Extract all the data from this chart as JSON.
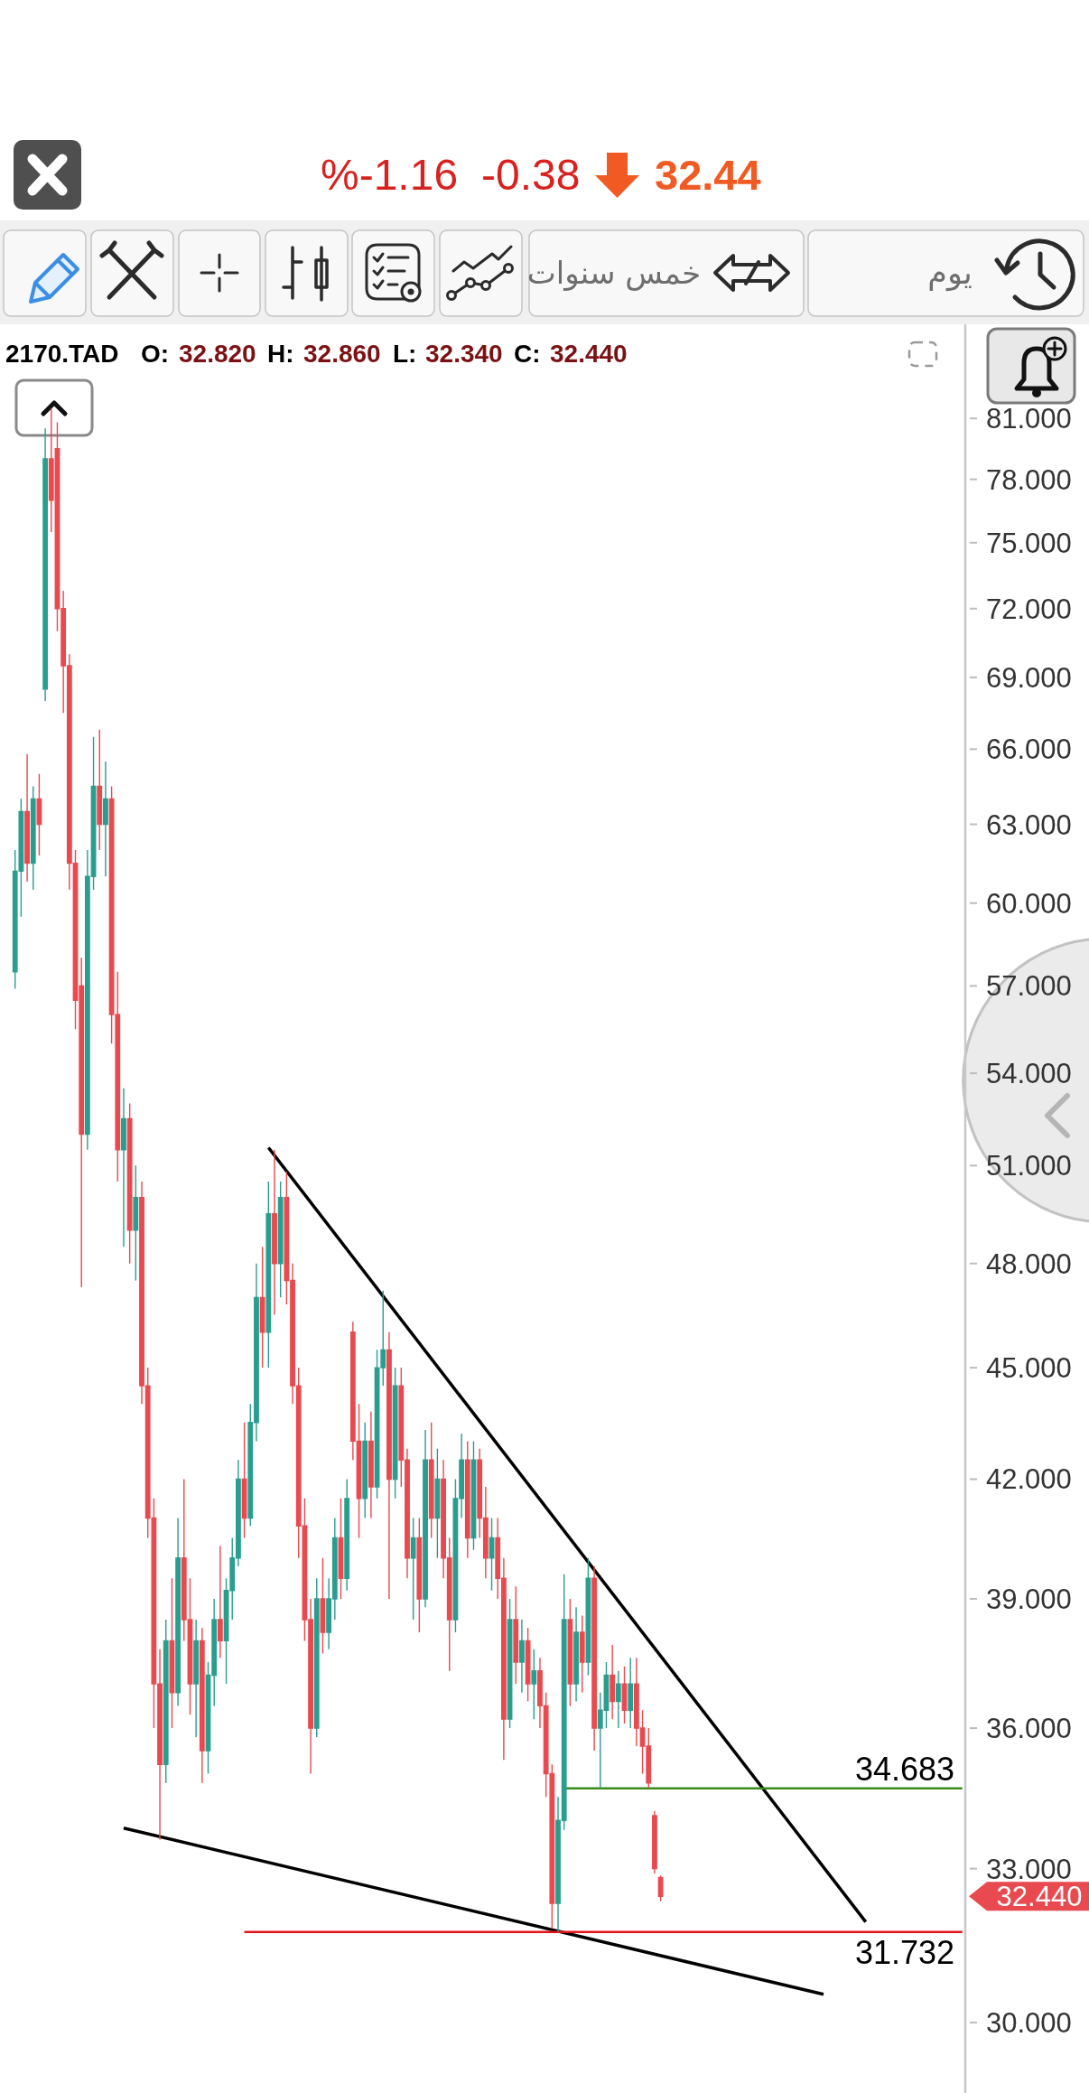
{
  "chart_data": {
    "type": "candlestick",
    "title": "2170.TAD",
    "annotations": [
      "%-1.16",
      "-0.38",
      "32.44",
      "خمس سنوات",
      "يوم",
      "O:",
      "32.820",
      "H:",
      "32.860",
      "L:",
      "32.340",
      "C:",
      "32.440",
      "32.440"
    ],
    "categories": [
      null,
      null,
      null,
      null,
      null,
      null,
      null,
      null,
      null,
      null,
      null,
      null,
      null,
      null,
      null,
      null,
      null,
      null,
      null,
      null,
      null,
      null,
      null,
      null,
      null,
      null,
      null,
      null,
      null,
      null,
      null,
      null,
      null,
      null,
      null,
      null,
      null,
      null,
      null,
      null,
      null,
      null,
      null,
      null,
      null,
      null,
      null,
      null,
      null,
      null,
      null,
      null,
      null,
      null,
      null,
      null,
      null,
      null,
      null,
      null,
      null,
      null,
      null,
      null,
      null,
      null,
      null,
      null,
      null,
      null,
      null,
      null,
      null,
      null,
      null,
      null,
      null,
      null,
      null,
      null,
      null,
      null,
      null,
      null,
      null,
      null,
      null,
      null,
      null,
      null,
      null,
      null,
      null,
      null,
      null,
      null,
      null,
      null,
      null,
      null,
      null,
      null,
      null,
      null,
      null,
      null,
      null,
      null,
      null,
      null,
      null,
      null,
      null,
      null,
      null,
      null,
      null,
      null,
      null,
      null,
      null,
      null,
      null,
      null,
      null,
      null,
      null,
      null,
      null,
      null,
      null,
      null,
      null,
      null,
      null,
      null,
      null,
      null,
      null,
      null,
      null,
      null,
      null,
      null,
      null,
      null,
      null,
      null,
      null,
      null,
      null,
      null,
      null,
      null,
      null,
      null,
      null,
      null,
      null,
      null
    ],
    "ohlc": [
      null,
      null,
      [
        57.5,
        62.0,
        56.9,
        61.2
      ],
      [
        61.2,
        64.0,
        59.5,
        63.5
      ],
      [
        63.5,
        65.8,
        60.8,
        61.5
      ],
      [
        61.5,
        64.5,
        60.5,
        64.0
      ],
      [
        64.0,
        65.0,
        61.8,
        63.0
      ],
      [
        68.5,
        80.5,
        68.0,
        79.0
      ],
      [
        79.0,
        81.5,
        75.5,
        77.0
      ],
      [
        79.5,
        80.8,
        71.0,
        72.0
      ],
      [
        72.0,
        72.8,
        67.5,
        69.5
      ],
      [
        69.5,
        70.0,
        60.5,
        61.5
      ],
      [
        61.5,
        62.0,
        55.5,
        56.5
      ],
      [
        57.0,
        58.0,
        47.3,
        52.0
      ],
      [
        52.0,
        62.0,
        51.5,
        61.0
      ],
      [
        61.0,
        66.5,
        60.5,
        64.5
      ],
      [
        64.5,
        66.8,
        62.0,
        63.0
      ],
      [
        63.0,
        65.5,
        61.0,
        64.0
      ],
      [
        64.0,
        64.5,
        55.0,
        56.0
      ],
      [
        56.0,
        57.5,
        50.5,
        51.5
      ],
      [
        51.5,
        53.5,
        48.5,
        52.5
      ],
      [
        52.5,
        53.0,
        48.0,
        49.0
      ],
      [
        49.0,
        51.0,
        47.5,
        50.0
      ],
      [
        50.0,
        50.5,
        44.0,
        44.5
      ],
      [
        44.5,
        45.0,
        40.5,
        41.0
      ],
      [
        41.0,
        41.5,
        36.0,
        37.0
      ],
      [
        37.0,
        37.8,
        33.6,
        35.2
      ],
      [
        35.2,
        38.5,
        34.8,
        38.0
      ],
      [
        38.0,
        39.5,
        36.0,
        36.8
      ],
      [
        36.8,
        41.0,
        36.5,
        40.0
      ],
      [
        40.0,
        42.0,
        38.0,
        38.5
      ],
      [
        38.5,
        39.5,
        36.3,
        37.0
      ],
      [
        37.0,
        38.5,
        35.8,
        38.0
      ],
      [
        38.0,
        38.3,
        34.8,
        35.5
      ],
      [
        35.5,
        37.5,
        35.0,
        37.2
      ],
      [
        37.2,
        39.0,
        36.5,
        38.5
      ],
      [
        38.5,
        40.3,
        37.6,
        38.0
      ],
      [
        38.0,
        39.5,
        37.0,
        39.2
      ],
      [
        39.2,
        40.5,
        38.5,
        40.0
      ],
      [
        40.0,
        42.5,
        39.8,
        42.0
      ],
      [
        42.0,
        43.5,
        40.5,
        41.0
      ],
      [
        41.0,
        44.0,
        40.8,
        43.5
      ],
      [
        43.5,
        48.0,
        43.0,
        47.0
      ],
      [
        47.0,
        48.5,
        45.0,
        46.0
      ],
      [
        46.0,
        50.5,
        45.0,
        49.5
      ],
      [
        49.5,
        51.5,
        46.5,
        48.0
      ],
      [
        48.0,
        50.5,
        47.0,
        50.0
      ],
      [
        50.0,
        50.8,
        46.8,
        47.5
      ],
      [
        47.5,
        48.0,
        44.0,
        44.5
      ],
      [
        44.5,
        45.0,
        40.0,
        40.8
      ],
      [
        40.8,
        41.5,
        38.0,
        38.5
      ],
      [
        38.5,
        39.0,
        35.0,
        36.0
      ],
      [
        36.0,
        39.5,
        35.8,
        39.0
      ],
      [
        39.0,
        40.0,
        37.7,
        38.2
      ],
      [
        38.2,
        39.5,
        37.8,
        39.0
      ],
      [
        39.0,
        41.0,
        38.5,
        40.5
      ],
      [
        40.5,
        41.5,
        39.0,
        39.5
      ],
      [
        39.5,
        42.0,
        39.2,
        41.5
      ],
      [
        46.0,
        46.3,
        42.5,
        43.0
      ],
      [
        43.0,
        44.0,
        40.5,
        41.5
      ],
      [
        41.5,
        43.5,
        41.0,
        43.0
      ],
      [
        43.0,
        43.8,
        41.0,
        41.8
      ],
      [
        41.8,
        45.5,
        41.5,
        45.0
      ],
      [
        45.0,
        47.2,
        44.5,
        45.5
      ],
      [
        45.5,
        46.0,
        39.0,
        42.0
      ],
      [
        42.0,
        45.0,
        41.5,
        44.5
      ],
      [
        44.5,
        45.0,
        41.8,
        42.5
      ],
      [
        42.5,
        42.8,
        39.5,
        40.0
      ],
      [
        40.0,
        41.0,
        38.5,
        40.5
      ],
      [
        40.5,
        41.0,
        38.2,
        39.0
      ],
      [
        39.0,
        43.3,
        38.8,
        42.5
      ],
      [
        42.5,
        43.5,
        40.5,
        41.0
      ],
      [
        41.0,
        42.8,
        40.0,
        42.0
      ],
      [
        42.0,
        42.5,
        39.5,
        40.0
      ],
      [
        40.0,
        40.5,
        37.3,
        38.5
      ],
      [
        38.5,
        42.0,
        38.2,
        41.5
      ],
      [
        41.5,
        43.2,
        41.0,
        42.5
      ],
      [
        42.5,
        43.0,
        40.0,
        40.5
      ],
      [
        40.5,
        43.0,
        40.2,
        42.5
      ],
      [
        42.5,
        42.8,
        40.5,
        41.0
      ],
      [
        41.0,
        41.8,
        39.5,
        40.0
      ],
      [
        40.0,
        41.0,
        39.2,
        40.5
      ],
      [
        40.5,
        41.0,
        39.0,
        39.5
      ],
      [
        39.5,
        40.0,
        35.3,
        36.2
      ],
      [
        36.2,
        39.0,
        36.0,
        38.5
      ],
      [
        38.5,
        39.3,
        37.0,
        37.5
      ],
      [
        37.5,
        38.5,
        36.8,
        38.0
      ],
      [
        38.0,
        38.3,
        36.6,
        37.0
      ],
      [
        37.0,
        37.8,
        36.2,
        37.3
      ],
      [
        37.3,
        37.6,
        36.0,
        36.5
      ],
      [
        36.5,
        36.8,
        34.5,
        35.0
      ],
      [
        35.0,
        35.2,
        31.8,
        32.3
      ],
      [
        32.3,
        34.5,
        31.732,
        34.0
      ],
      [
        34.0,
        39.6,
        33.8,
        38.5
      ],
      [
        38.5,
        39.0,
        36.5,
        37.0
      ],
      [
        37.0,
        38.8,
        36.6,
        38.2
      ],
      [
        38.2,
        38.6,
        36.8,
        37.5
      ],
      [
        37.5,
        40.0,
        37.2,
        39.5
      ],
      [
        39.5,
        39.8,
        35.5,
        36.0
      ],
      [
        36.0,
        36.8,
        34.683,
        36.4
      ],
      [
        36.4,
        37.5,
        36.0,
        37.2
      ],
      [
        37.2,
        37.9,
        36.2,
        36.6
      ],
      [
        36.6,
        37.3,
        36.0,
        37.0
      ],
      [
        37.0,
        37.4,
        36.1,
        36.4
      ],
      [
        36.4,
        37.6,
        36.0,
        37.0
      ],
      [
        37.0,
        37.6,
        35.6,
        36.0
      ],
      [
        36.0,
        36.4,
        35.0,
        35.6
      ],
      [
        35.6,
        36.0,
        34.683,
        34.8
      ],
      [
        34.1,
        34.2,
        32.9,
        33.0
      ],
      [
        32.82,
        32.86,
        32.34,
        32.44
      ],
      null,
      null,
      null,
      null,
      null,
      null,
      null,
      null,
      null,
      null,
      null,
      null,
      null,
      null,
      null,
      null,
      null,
      null,
      null,
      null,
      null,
      null,
      null,
      null,
      null,
      null,
      null,
      null,
      null,
      null,
      null,
      null,
      null,
      null,
      null,
      null,
      null,
      null,
      null,
      null,
      null,
      null,
      null,
      null,
      null,
      null,
      null,
      null,
      null,
      null
    ],
    "colors": [
      null,
      null,
      "#2a9d8f",
      "#2a9d8f",
      "#e84a4f",
      "#2a9d8f",
      "#e84a4f",
      "#2a9d8f",
      "#e84a4f",
      "#e84a4f",
      "#e84a4f",
      "#e84a4f",
      "#e84a4f",
      "#e84a4f",
      "#2a9d8f",
      "#2a9d8f",
      "#e84a4f",
      "#2a9d8f",
      "#e84a4f",
      "#e84a4f",
      "#2a9d8f",
      "#e84a4f",
      "#2a9d8f",
      "#e84a4f",
      "#e84a4f",
      "#e84a4f",
      "#e84a4f",
      "#2a9d8f",
      "#e84a4f",
      "#2a9d8f",
      "#e84a4f",
      "#e84a4f",
      "#2a9d8f",
      "#e84a4f",
      "#2a9d8f",
      "#2a9d8f",
      "#e84a4f",
      "#2a9d8f",
      "#2a9d8f",
      "#2a9d8f",
      "#e84a4f",
      "#2a9d8f",
      "#2a9d8f",
      "#e84a4f",
      "#2a9d8f",
      "#e84a4f",
      "#2a9d8f",
      "#e84a4f",
      "#e84a4f",
      "#e84a4f",
      "#e84a4f",
      "#e84a4f",
      "#2a9d8f",
      "#e84a4f",
      "#2a9d8f",
      "#2a9d8f",
      "#e84a4f",
      "#2a9d8f",
      "#e84a4f",
      "#e84a4f",
      "#2a9d8f",
      "#e84a4f",
      "#2a9d8f",
      "#2a9d8f",
      "#e84a4f",
      "#2a9d8f",
      "#e84a4f",
      "#e84a4f",
      "#2a9d8f",
      "#e84a4f",
      "#2a9d8f",
      "#e84a4f",
      "#2a9d8f",
      "#e84a4f",
      "#e84a4f",
      "#2a9d8f",
      "#2a9d8f",
      "#e84a4f",
      "#2a9d8f",
      "#e84a4f",
      "#e84a4f",
      "#2a9d8f",
      "#e84a4f",
      "#e84a4f",
      "#2a9d8f",
      "#e84a4f",
      "#2a9d8f",
      "#e84a4f",
      "#2a9d8f",
      "#e84a4f",
      "#e84a4f",
      "#e84a4f",
      "#2a9d8f",
      "#2a9d8f",
      "#e84a4f",
      "#2a9d8f",
      "#e84a4f",
      "#2a9d8f",
      "#e84a4f",
      "#2a9d8f",
      "#2a9d8f",
      "#e84a4f",
      "#2a9d8f",
      "#e84a4f",
      "#2a9d8f",
      "#e84a4f",
      "#e84a4f",
      "#e84a4f",
      "#e84a4f",
      "#e84a4f",
      null,
      null,
      null,
      null,
      null,
      null,
      null,
      null,
      null,
      null,
      null,
      null,
      null,
      null,
      null,
      null,
      null,
      null,
      null,
      null,
      null,
      null,
      null,
      null,
      null,
      null,
      null,
      null,
      null,
      null,
      null,
      null,
      null,
      null,
      null,
      null,
      null,
      null,
      null,
      null,
      null,
      null,
      null,
      null,
      null,
      null,
      null,
      null,
      null,
      null
    ],
    "series": [
      {
        "type": "line",
        "color": "#000000",
        "values": [
          null,
          null,
          null,
          null,
          null,
          null,
          null,
          null,
          null,
          null,
          null,
          null,
          null,
          null,
          null,
          null,
          null,
          null,
          null,
          null,
          null,
          null,
          null,
          null,
          null,
          null,
          null,
          null,
          null,
          null,
          null,
          null,
          null,
          null,
          null,
          null,
          null,
          null,
          null,
          null,
          null,
          null,
          null,
          null,
          51.57,
          null,
          null,
          null,
          null,
          null,
          null,
          null,
          null,
          null,
          null,
          null,
          null,
          null,
          null,
          null,
          null,
          null,
          null,
          null,
          null,
          null,
          null,
          null,
          null,
          null,
          null,
          null,
          null,
          null,
          null,
          null,
          null,
          null,
          null,
          null,
          null,
          null,
          null,
          null,
          null,
          null,
          null,
          null,
          null,
          null,
          null,
          null,
          null,
          null,
          null,
          null,
          null,
          null,
          null,
          null,
          null,
          null,
          null,
          null,
          null,
          null,
          null,
          null,
          null,
          null,
          null,
          null,
          null,
          null,
          null,
          null,
          null,
          null,
          null,
          null,
          null,
          null,
          null,
          null,
          null,
          null,
          null,
          null,
          null,
          null,
          null,
          null,
          null,
          null,
          null,
          null,
          null,
          null,
          null,
          null,
          null,
          null,
          null,
          31.93,
          null,
          null,
          null,
          null,
          null,
          null,
          null,
          null,
          null,
          null,
          null,
          null,
          null,
          null,
          null,
          null
        ]
      },
      {
        "type": "line",
        "color": "#000000",
        "values": [
          null,
          null,
          null,
          null,
          null,
          null,
          null,
          null,
          null,
          null,
          null,
          null,
          null,
          null,
          null,
          null,
          null,
          null,
          null,
          null,
          33.84,
          null,
          null,
          null,
          null,
          null,
          null,
          null,
          null,
          null,
          null,
          null,
          null,
          null,
          null,
          null,
          null,
          null,
          null,
          null,
          null,
          null,
          null,
          null,
          null,
          null,
          null,
          null,
          null,
          null,
          null,
          null,
          null,
          null,
          null,
          null,
          null,
          null,
          null,
          null,
          null,
          null,
          null,
          null,
          null,
          null,
          null,
          null,
          null,
          null,
          null,
          null,
          null,
          null,
          null,
          null,
          null,
          null,
          null,
          null,
          null,
          null,
          null,
          null,
          null,
          null,
          null,
          null,
          null,
          null,
          null,
          null,
          null,
          null,
          null,
          null,
          null,
          null,
          null,
          null,
          null,
          null,
          null,
          null,
          null,
          null,
          null,
          null,
          null,
          null,
          null,
          null,
          null,
          null,
          null,
          null,
          null,
          null,
          null,
          null,
          null,
          null,
          null,
          null,
          null,
          null,
          null,
          null,
          null,
          null,
          null,
          null,
          null,
          null,
          null,
          null,
          30.53,
          null,
          null,
          null,
          null,
          null,
          null,
          null,
          null,
          null,
          null,
          null,
          null,
          null,
          null,
          null,
          null,
          null,
          null,
          null,
          null,
          null,
          null,
          null
        ]
      },
      {
        "type": "line",
        "name": "34.683",
        "color": "#3b8a1e",
        "values": [
          null,
          null,
          null,
          null,
          null,
          null,
          null,
          null,
          null,
          null,
          null,
          null,
          null,
          null,
          null,
          null,
          null,
          null,
          null,
          null,
          null,
          null,
          null,
          null,
          null,
          null,
          null,
          null,
          null,
          null,
          null,
          null,
          null,
          null,
          null,
          null,
          null,
          null,
          null,
          null,
          null,
          null,
          null,
          null,
          null,
          null,
          null,
          null,
          null,
          null,
          null,
          null,
          null,
          null,
          null,
          null,
          null,
          null,
          null,
          null,
          null,
          null,
          null,
          null,
          null,
          null,
          null,
          null,
          null,
          null,
          null,
          null,
          null,
          null,
          null,
          null,
          null,
          null,
          null,
          null,
          null,
          null,
          null,
          null,
          null,
          null,
          null,
          null,
          null,
          null,
          null,
          null,
          null,
          34.683,
          null,
          null,
          null,
          null,
          null,
          null,
          null,
          null,
          null,
          null,
          null,
          null,
          null,
          null,
          null,
          null,
          null,
          null,
          null,
          null,
          null,
          null,
          null,
          null,
          null,
          null,
          null,
          null,
          null,
          null,
          null,
          null,
          null,
          null,
          null,
          null,
          null,
          null,
          null,
          null,
          null,
          null,
          null,
          null,
          null,
          null,
          null,
          null,
          null,
          null,
          null,
          null,
          null,
          null,
          null,
          null,
          null,
          null,
          null,
          null,
          null,
          null,
          null,
          null,
          null,
          34.683
        ]
      },
      {
        "type": "line",
        "name": "31.732",
        "color": "#e3151a",
        "values": [
          null,
          null,
          null,
          null,
          null,
          null,
          null,
          null,
          null,
          null,
          null,
          null,
          null,
          null,
          null,
          null,
          null,
          null,
          null,
          null,
          null,
          null,
          null,
          null,
          null,
          null,
          null,
          null,
          null,
          null,
          null,
          null,
          null,
          null,
          null,
          null,
          null,
          null,
          null,
          null,
          31.732,
          null,
          null,
          null,
          null,
          null,
          null,
          null,
          null,
          null,
          null,
          null,
          null,
          null,
          null,
          null,
          null,
          null,
          null,
          null,
          null,
          null,
          null,
          null,
          null,
          null,
          null,
          null,
          null,
          null,
          null,
          null,
          null,
          null,
          null,
          null,
          null,
          null,
          null,
          null,
          null,
          null,
          null,
          null,
          null,
          null,
          null,
          null,
          null,
          null,
          null,
          null,
          null,
          null,
          null,
          null,
          null,
          null,
          null,
          null,
          null,
          null,
          null,
          null,
          null,
          null,
          null,
          null,
          null,
          null,
          null,
          null,
          null,
          null,
          null,
          null,
          null,
          null,
          null,
          null,
          null,
          null,
          null,
          null,
          null,
          null,
          null,
          null,
          null,
          null,
          null,
          null,
          null,
          null,
          null,
          null,
          null,
          null,
          null,
          null,
          null,
          null,
          null,
          null,
          null,
          null,
          null,
          null,
          null,
          null,
          null,
          null,
          null,
          null,
          null,
          null,
          null,
          null,
          null,
          31.732
        ]
      }
    ],
    "log": "y",
    "ylim": [
      28.72,
      85.86
    ],
    "yticks": [
      {
        "value": 30,
        "label": "30.000"
      },
      {
        "value": 33,
        "label": "33.000"
      },
      {
        "value": 36,
        "label": "36.000"
      },
      {
        "value": 39,
        "label": "39.000"
      },
      {
        "value": 42,
        "label": "42.000"
      },
      {
        "value": 45,
        "label": "45.000"
      },
      {
        "value": 48,
        "label": "48.000"
      },
      {
        "value": 51,
        "label": "51.000"
      },
      {
        "value": 54,
        "label": "54.000"
      },
      {
        "value": 57,
        "label": "57.000"
      },
      {
        "value": 60,
        "label": "60.000"
      },
      {
        "value": 63,
        "label": "63.000"
      },
      {
        "value": 66,
        "label": "66.000"
      },
      {
        "value": 69,
        "label": "69.000"
      },
      {
        "value": 72,
        "label": "72.000"
      },
      {
        "value": 75,
        "label": "75.000"
      },
      {
        "value": 78,
        "label": "78.000"
      },
      {
        "value": 81,
        "label": "81.000"
      }
    ],
    "tick_labels": "y"
  }
}
